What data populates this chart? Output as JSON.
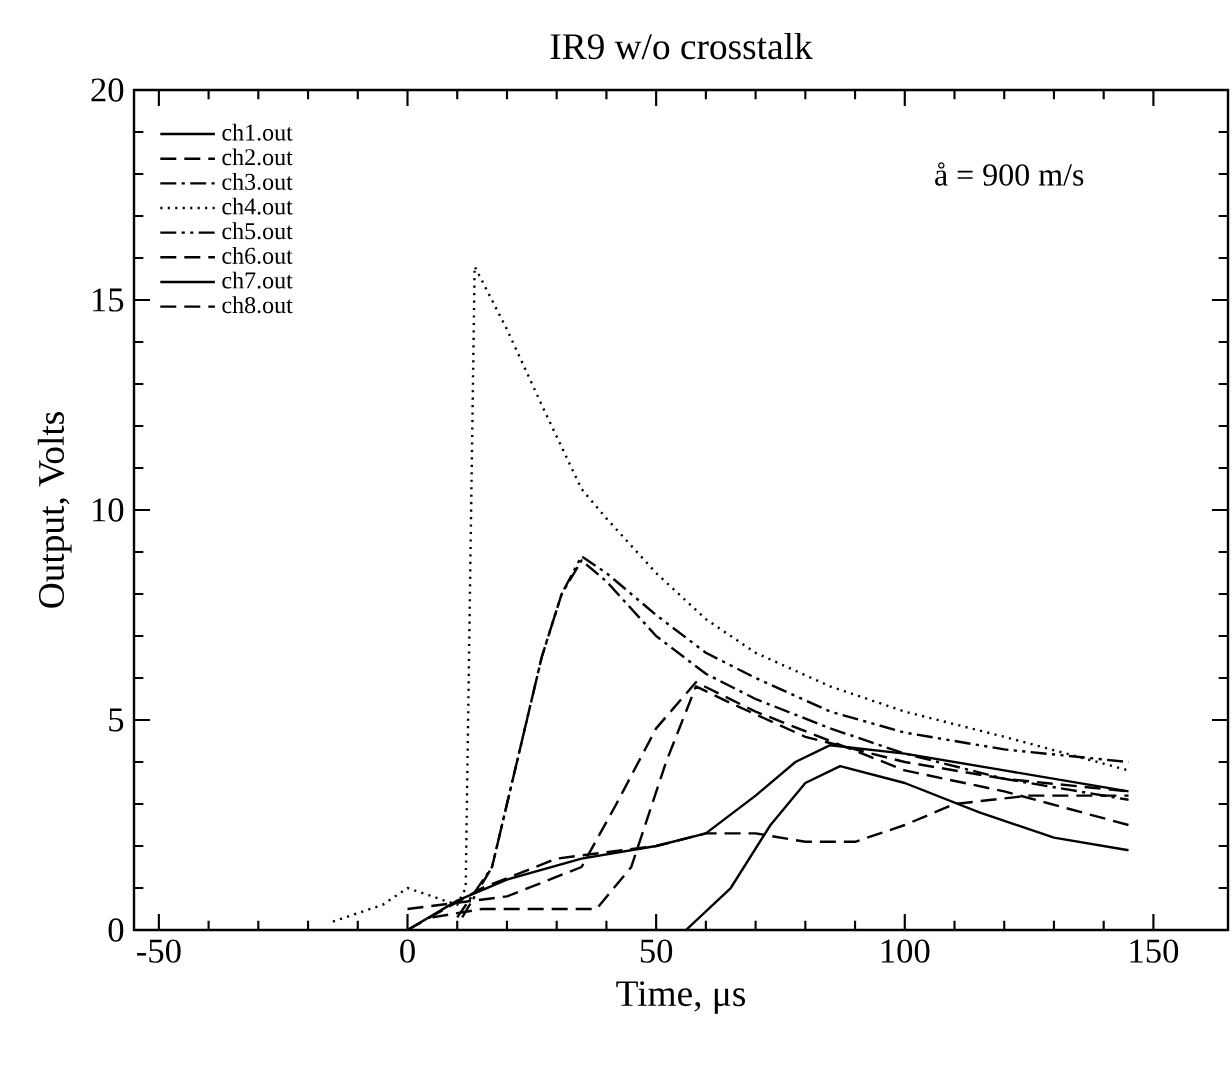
{
  "chart_data": {
    "type": "line",
    "title": "IR9 w/o crosstalk",
    "xlabel": "Time, μs",
    "ylabel": "Output, Volts",
    "annotations": [
      "å = 900 m/s"
    ],
    "xlim": [
      -55,
      165
    ],
    "ylim": [
      0,
      20
    ],
    "xticks": [
      -50,
      0,
      50,
      100,
      150
    ],
    "yticks": [
      0,
      5,
      10,
      15,
      20
    ],
    "grid": false,
    "legend": "top left",
    "marker": "none",
    "series": [
      {
        "name": "ch1.out",
        "color": "#000000",
        "line_style": "solid",
        "x": [
          0,
          10,
          20,
          35,
          50,
          60,
          70,
          78,
          85,
          100,
          120,
          145
        ],
        "values": [
          0,
          0.7,
          1.2,
          1.7,
          2.0,
          2.3,
          3.2,
          4.0,
          4.4,
          4.2,
          3.8,
          3.3
        ]
      },
      {
        "name": "ch2.out",
        "color": "#000000",
        "line_style": "dashed",
        "x": [
          5,
          15,
          30,
          38,
          45,
          52,
          58,
          65,
          80,
          100,
          120,
          145
        ],
        "values": [
          0.3,
          0.5,
          0.5,
          0.5,
          1.5,
          4.0,
          5.8,
          5.4,
          4.6,
          4.0,
          3.6,
          3.3
        ]
      },
      {
        "name": "ch3.out",
        "color": "#000000",
        "line_style": "dashdot",
        "x": [
          10,
          17,
          22,
          27,
          31,
          35,
          40,
          50,
          60,
          70,
          85,
          100,
          120,
          145
        ],
        "values": [
          0.3,
          1.5,
          4.0,
          6.5,
          8.0,
          8.8,
          8.3,
          7.0,
          6.1,
          5.5,
          4.8,
          4.2,
          3.6,
          3.1
        ]
      },
      {
        "name": "ch4.out",
        "color": "#000000",
        "line_style": "dotted",
        "x": [
          -15,
          -5,
          0,
          5,
          10,
          11.7,
          13.5,
          20,
          27,
          35,
          40,
          50,
          60,
          70,
          85,
          100,
          120,
          145
        ],
        "values": [
          0.2,
          0.6,
          1.0,
          0.8,
          0.6,
          1.0,
          15.8,
          14.3,
          12.5,
          10.5,
          9.8,
          8.5,
          7.4,
          6.6,
          5.8,
          5.2,
          4.6,
          3.8
        ]
      },
      {
        "name": "ch5.out",
        "color": "#000000",
        "line_style": "dashdotdot",
        "x": [
          11,
          17,
          22,
          27,
          31,
          35,
          40,
          50,
          60,
          70,
          85,
          100,
          120,
          145
        ],
        "values": [
          0.3,
          1.5,
          4.0,
          6.5,
          8.0,
          8.9,
          8.5,
          7.5,
          6.6,
          6.0,
          5.2,
          4.7,
          4.3,
          4.0
        ]
      },
      {
        "name": "ch6.out",
        "color": "#000000",
        "line_style": "dashed",
        "x": [
          0,
          20,
          35,
          42,
          50,
          58,
          70,
          85,
          100,
          120,
          145
        ],
        "values": [
          0.5,
          0.8,
          1.5,
          3.0,
          4.8,
          5.9,
          5.2,
          4.5,
          3.8,
          3.3,
          2.5
        ]
      },
      {
        "name": "ch7.out",
        "color": "#000000",
        "line_style": "solid",
        "x": [
          56,
          65,
          73,
          80,
          87,
          100,
          115,
          130,
          145
        ],
        "values": [
          0,
          1.0,
          2.5,
          3.5,
          3.9,
          3.5,
          2.8,
          2.2,
          1.9
        ]
      },
      {
        "name": "ch8.out",
        "color": "#000000",
        "line_style": "dashed",
        "x": [
          0,
          15,
          30,
          50,
          60,
          70,
          80,
          90,
          100,
          110,
          125,
          145
        ],
        "values": [
          0,
          1.0,
          1.7,
          2.0,
          2.3,
          2.3,
          2.1,
          2.1,
          2.5,
          3.0,
          3.2,
          3.2
        ]
      }
    ]
  }
}
